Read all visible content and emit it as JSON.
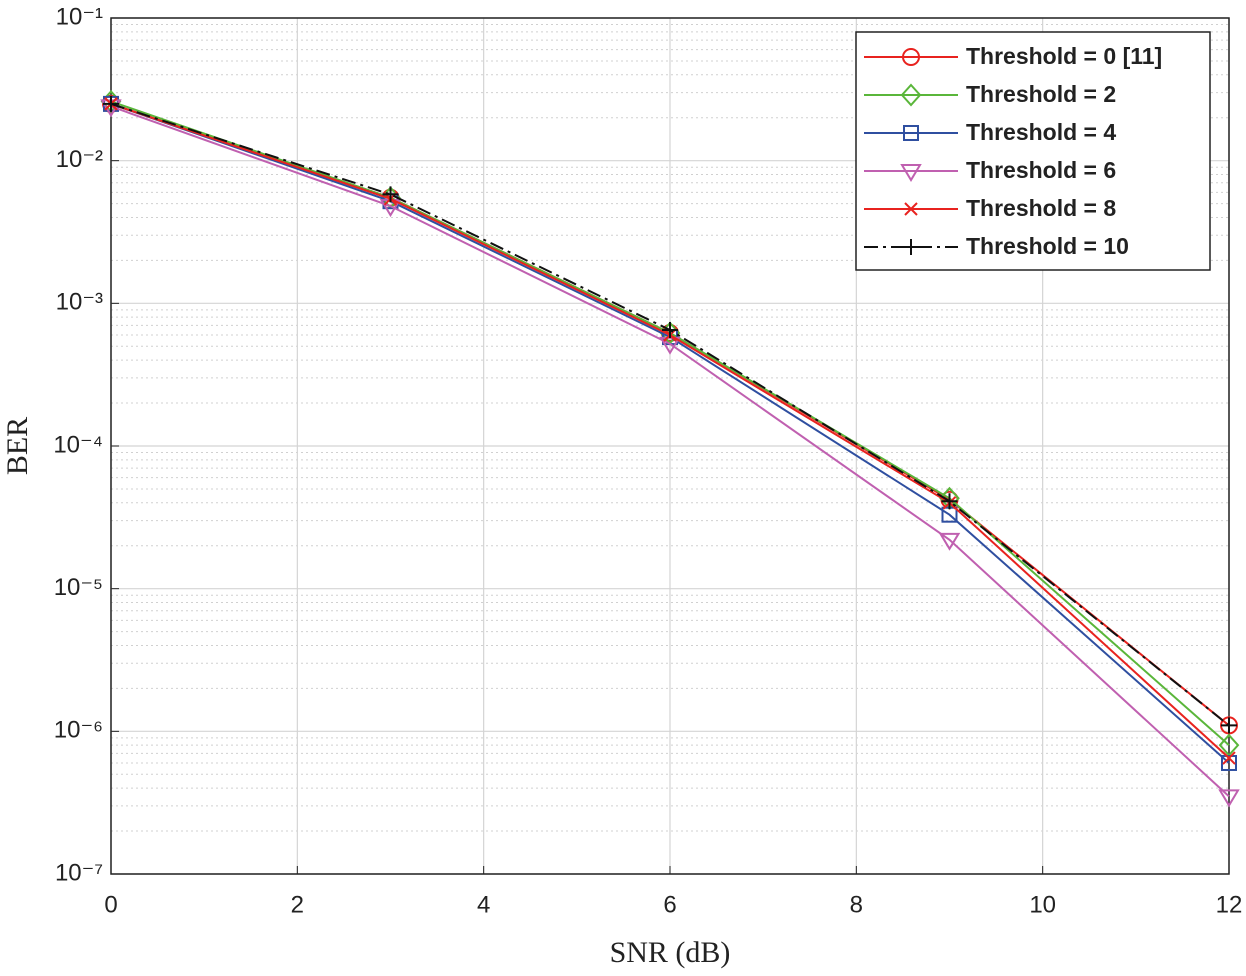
{
  "chart_data": {
    "type": "line",
    "xlabel": "SNR (dB)",
    "ylabel": "BER",
    "x": [
      0,
      3,
      6,
      9,
      12
    ],
    "xlim": [
      0,
      12
    ],
    "xticks": [
      0,
      2,
      4,
      6,
      8,
      10,
      12
    ],
    "ylim": [
      1e-07,
      0.1
    ],
    "log_y": true,
    "yticks": [
      {
        "value": 1e-07,
        "label": "10⁻⁷"
      },
      {
        "value": 1e-06,
        "label": "10⁻⁶"
      },
      {
        "value": 1e-05,
        "label": "10⁻⁵"
      },
      {
        "value": 0.0001,
        "label": "10⁻⁴"
      },
      {
        "value": 0.001,
        "label": "10⁻³"
      },
      {
        "value": 0.01,
        "label": "10⁻²"
      },
      {
        "value": 0.1,
        "label": "10⁻¹"
      }
    ],
    "grid": true,
    "minor_grid": true,
    "legend": "upper right",
    "series": [
      {
        "name": "Threshold = 0 [11]",
        "color": "#e8231f",
        "marker": "circle",
        "linestyle": "solid",
        "values": [
          0.025,
          0.0055,
          0.00062,
          4.2e-05,
          1.1e-06
        ]
      },
      {
        "name": "Threshold = 2",
        "color": "#5ab63a",
        "marker": "diamond",
        "linestyle": "solid",
        "values": [
          0.026,
          0.0055,
          0.00062,
          4.3e-05,
          8e-07
        ]
      },
      {
        "name": "Threshold = 4",
        "color": "#2f4fa0",
        "marker": "square",
        "linestyle": "solid",
        "values": [
          0.025,
          0.0052,
          0.00058,
          3.3e-05,
          6e-07
        ]
      },
      {
        "name": "Threshold = 6",
        "color": "#c060b0",
        "marker": "triangle-down",
        "linestyle": "solid",
        "values": [
          0.024,
          0.0048,
          0.00052,
          2.2e-05,
          3.5e-07
        ]
      },
      {
        "name": "Threshold = 8",
        "color": "#e8231f",
        "marker": "x",
        "linestyle": "solid",
        "values": [
          0.025,
          0.0054,
          0.0006,
          4e-05,
          6.5e-07
        ]
      },
      {
        "name": "Threshold = 10",
        "color": "#111111",
        "marker": "plus",
        "linestyle": "dashdot",
        "values": [
          0.025,
          0.0058,
          0.00065,
          4.1e-05,
          1.1e-06
        ]
      }
    ]
  }
}
